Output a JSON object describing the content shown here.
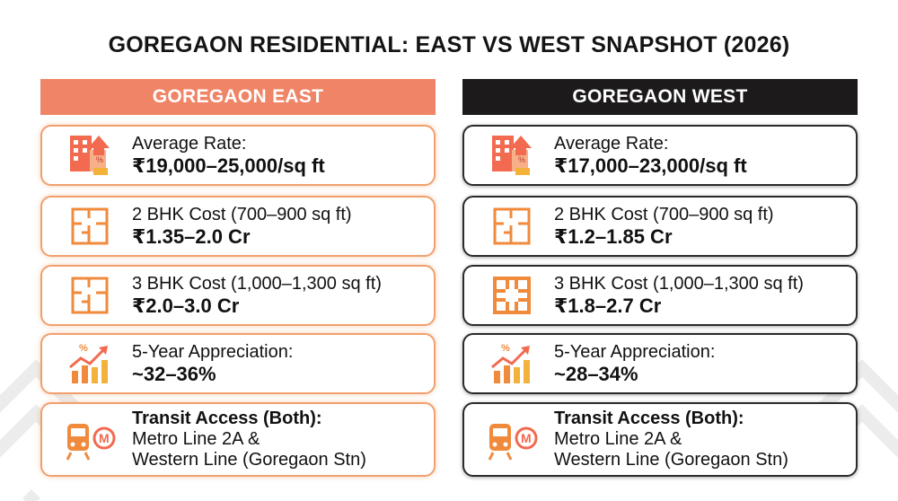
{
  "title": "GOREGAON RESIDENTIAL: EAST VS WEST SNAPSHOT (2026)",
  "colors": {
    "east_accent": "#f08466",
    "west_accent": "#1c1a1b",
    "icon_orange": "#f08a3c"
  },
  "east": {
    "header": "GOREGAON EAST",
    "cards": [
      {
        "icon": "building-price-icon",
        "label": "Average Rate:",
        "value": "₹19,000–25,000/sq ft"
      },
      {
        "icon": "floorplan-icon",
        "label": "2 BHK Cost (700–900 sq ft)",
        "value": "₹1.35–2.0 Cr"
      },
      {
        "icon": "floorplan-icon",
        "label": "3 BHK Cost (1,000–1,300 sq ft)",
        "value": "₹2.0–3.0 Cr"
      },
      {
        "icon": "growth-chart-icon",
        "label": "5-Year Appreciation:",
        "value": "~32–36%"
      },
      {
        "icon": "metro-train-icon",
        "label": "Transit Access (Both):",
        "value": "Metro Line 2A &",
        "value2": "Western Line (Goregaon Stn)"
      }
    ]
  },
  "west": {
    "header": "GOREGAON WEST",
    "cards": [
      {
        "icon": "building-price-icon",
        "label": "Average Rate:",
        "value": "₹17,000–23,000/sq ft"
      },
      {
        "icon": "floorplan-icon",
        "label": "2 BHK Cost (700–900 sq ft)",
        "value": "₹1.2–1.85 Cr"
      },
      {
        "icon": "floorplan-icon",
        "label": "3 BHK Cost (1,000–1,300 sq ft)",
        "value": "₹1.8–2.7 Cr"
      },
      {
        "icon": "growth-chart-icon",
        "label": "5-Year Appreciation:",
        "value": "~28–34%"
      },
      {
        "icon": "metro-train-icon",
        "label": "Transit Access (Both):",
        "value": "Metro Line 2A &",
        "value2": "Western Line (Goregaon Stn)"
      }
    ]
  }
}
